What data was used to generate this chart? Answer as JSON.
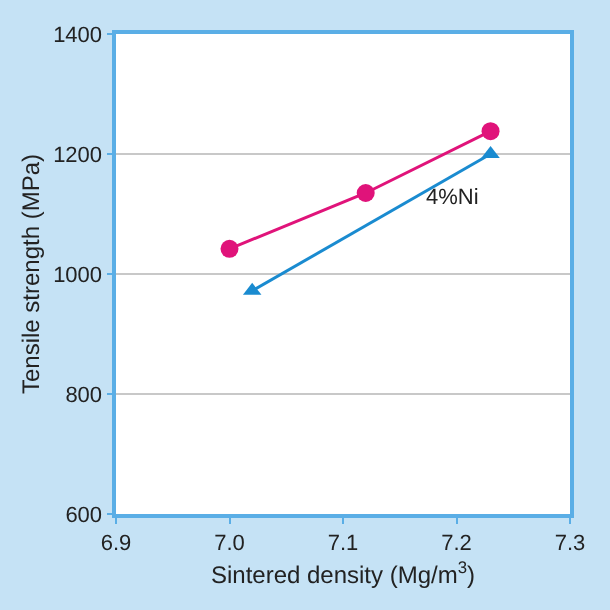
{
  "chart_data": {
    "type": "line",
    "xlabel": "Sintered density (Mg/m$^{3}$)",
    "ylabel": "Tensile strength (MPa)",
    "xlim": [
      6.9,
      7.3
    ],
    "xticks": [
      {
        "value": 6.9,
        "label": "6.9"
      },
      {
        "value": 7.0,
        "label": "7.0"
      },
      {
        "value": 7.1,
        "label": "7.1"
      },
      {
        "value": 7.2,
        "label": "7.2"
      },
      {
        "value": 7.3,
        "label": "7.3"
      }
    ],
    "ylim": [
      600,
      1400
    ],
    "yticks": [
      600,
      800,
      1000,
      1200,
      1400
    ],
    "grid": "y",
    "legend": false,
    "series": [
      {
        "color": "#e0137a",
        "marker": "circle",
        "x": [
          7.0,
          7.12,
          7.23
        ],
        "values": [
          1042,
          1135,
          1238
        ]
      },
      {
        "name": "4%Ni",
        "color": "#1a8bd0",
        "marker": "triangle",
        "x": [
          7.02,
          7.23
        ],
        "values": [
          972,
          1200
        ]
      }
    ]
  }
}
